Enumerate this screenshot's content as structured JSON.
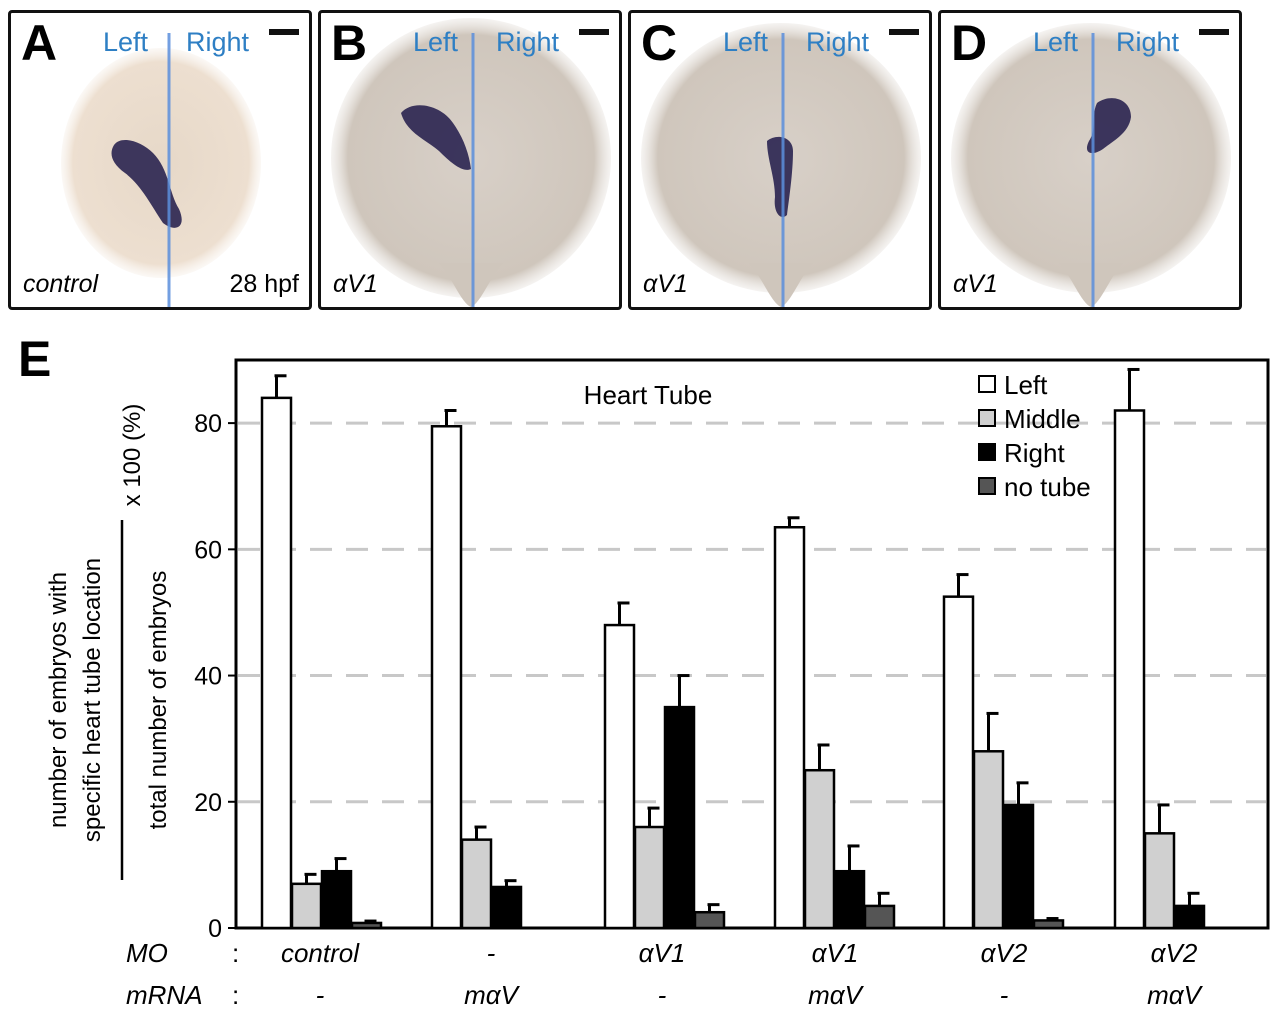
{
  "panels": [
    {
      "letter": "A",
      "left_label": "Left",
      "right_label": "Right",
      "condition": "control",
      "stage": "28 hpf"
    },
    {
      "letter": "B",
      "left_label": "Left",
      "right_label": "Right",
      "condition": "αV1",
      "stage": ""
    },
    {
      "letter": "C",
      "left_label": "Left",
      "right_label": "Right",
      "condition": "αV1",
      "stage": ""
    },
    {
      "letter": "D",
      "left_label": "Left",
      "right_label": "Right",
      "condition": "αV1",
      "stage": ""
    }
  ],
  "panel_e_letter": "E",
  "chart_data": {
    "type": "bar",
    "title": "Heart Tube",
    "ylabel_numerator": "number of embryos with specific heart tube location",
    "ylabel_denominator": "total number of embryos",
    "ylabel_factor": "x 100 (%)",
    "ylim": [
      0,
      90
    ],
    "yticks": [
      0,
      20,
      40,
      60,
      80
    ],
    "grid": "dashed horizontal at 20, 40, 60, 80",
    "legend_position": "top-right",
    "categories": [
      "control / -",
      "- / mαV",
      "αV1 / -",
      "αV1 / mαV",
      "αV2 / -",
      "αV2 / mαV"
    ],
    "series": [
      {
        "name": "Left",
        "color": "#ffffff",
        "values": [
          84,
          79.5,
          48,
          63.5,
          52.5,
          82
        ],
        "errors": [
          3.5,
          2.5,
          3.5,
          1.5,
          3.5,
          6.5
        ]
      },
      {
        "name": "Middle",
        "color": "#d0d0d0",
        "values": [
          7,
          14,
          16,
          25,
          28,
          15
        ],
        "errors": [
          1.5,
          2,
          3,
          4,
          6,
          4.5
        ]
      },
      {
        "name": "Right",
        "color": "#000000",
        "values": [
          9,
          6.5,
          35,
          9,
          19.5,
          3.5
        ],
        "errors": [
          2,
          1,
          5,
          4,
          3.5,
          2
        ]
      },
      {
        "name": "no tube",
        "color": "#555555",
        "values": [
          0.8,
          0,
          2.5,
          3.5,
          1.2,
          0
        ],
        "errors": [
          0.3,
          0,
          1.2,
          2,
          0.3,
          0
        ]
      }
    ]
  },
  "bottom_table": {
    "rows": [
      {
        "label": "MO",
        "sep": ":",
        "values": [
          "control",
          "-",
          "αV1",
          "αV1",
          "αV2",
          "αV2"
        ]
      },
      {
        "label": "mRNA",
        "sep": ":",
        "values": [
          "-",
          "mαV",
          "-",
          "mαV",
          "-",
          "mαV"
        ]
      }
    ]
  }
}
